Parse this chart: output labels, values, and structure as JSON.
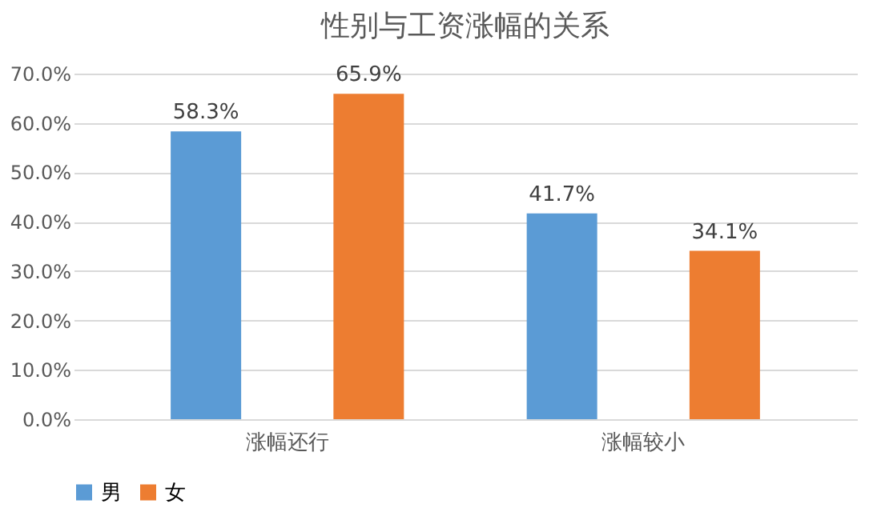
{
  "chart_data": {
    "type": "bar",
    "title": "性别与工资涨幅的关系",
    "categories": [
      "涨幅还行",
      "涨幅较小"
    ],
    "series": [
      {
        "name": "男",
        "color": "#5b9bd5",
        "values": [
          58.3,
          41.7
        ],
        "value_labels": [
          "58.3%",
          "41.7%"
        ]
      },
      {
        "name": "女",
        "color": "#ed7d31",
        "values": [
          65.9,
          34.1
        ],
        "value_labels": [
          "65.9%",
          "34.1%"
        ]
      }
    ],
    "ylim": [
      0,
      70
    ],
    "yticks": [
      {
        "value": 0,
        "label": "0.0%"
      },
      {
        "value": 10,
        "label": "10.0%"
      },
      {
        "value": 20,
        "label": "20.0%"
      },
      {
        "value": 30,
        "label": "30.0%"
      },
      {
        "value": 40,
        "label": "40.0%"
      },
      {
        "value": 50,
        "label": "50.0%"
      },
      {
        "value": 60,
        "label": "60.0%"
      },
      {
        "value": 70,
        "label": "70.0%"
      }
    ],
    "grid": "y",
    "legend": "bottom"
  }
}
